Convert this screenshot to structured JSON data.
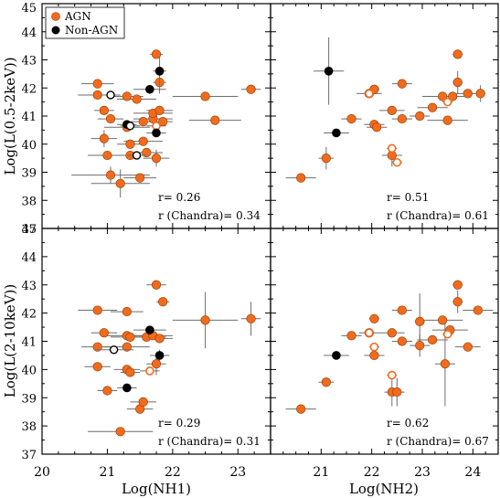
{
  "colors": {
    "agn": "#f26b1d",
    "agn_edge": "#8a3a00",
    "non_agn": "#000000",
    "axis": "#000000",
    "errbar": "#6e6e6e"
  },
  "legend": {
    "agn": "AGN",
    "non_agn": "Non-AGN",
    "placement": "top-left of top-left panel"
  },
  "chart_data": [
    {
      "type": "scatter",
      "panel": "top-left",
      "xlabel": "",
      "ylabel": "Log(L(0.5-2keV))",
      "xlim": [
        20,
        23.5
      ],
      "ylim": [
        37,
        45
      ],
      "xticks": [],
      "yticks": [
        "37",
        "38",
        "39",
        "40",
        "41",
        "42",
        "43",
        "44",
        "45"
      ],
      "stats": {
        "r": "r= 0.26",
        "r_chandra": "r (Chandra)= 0.34"
      },
      "agn": [
        {
          "x": 20.85,
          "y": 42.15,
          "xerr": 0.25,
          "yerr": 0.1,
          "open": false
        },
        {
          "x": 20.85,
          "y": 41.75,
          "xerr": 0.3,
          "yerr": 0.1,
          "open": false
        },
        {
          "x": 20.95,
          "y": 41.2,
          "xerr": 0.15,
          "yerr": 0.1,
          "open": false
        },
        {
          "x": 21.05,
          "y": 40.9,
          "xerr": 0.2,
          "yerr": 0.1,
          "open": false
        },
        {
          "x": 20.95,
          "y": 40.2,
          "xerr": 0.2,
          "yerr": 0.3,
          "open": false
        },
        {
          "x": 21.0,
          "y": 39.6,
          "xerr": 0.3,
          "yerr": 0.1,
          "open": false
        },
        {
          "x": 21.05,
          "y": 38.9,
          "xerr": 0.6,
          "yerr": 0.3,
          "open": false
        },
        {
          "x": 21.2,
          "y": 38.6,
          "xerr": 0.45,
          "yerr": 0.5,
          "open": false
        },
        {
          "x": 21.3,
          "y": 41.7,
          "xerr": 0.25,
          "yerr": 0.1,
          "open": false
        },
        {
          "x": 21.3,
          "y": 40.6,
          "xerr": 0.35,
          "yerr": 0.1,
          "open": false
        },
        {
          "x": 21.35,
          "y": 40.0,
          "xerr": 0.2,
          "yerr": 0.1,
          "open": false
        },
        {
          "x": 21.35,
          "y": 39.6,
          "xerr": 0.15,
          "yerr": 0.1,
          "open": false
        },
        {
          "x": 21.5,
          "y": 38.8,
          "xerr": 0.25,
          "yerr": 0.1,
          "open": false
        },
        {
          "x": 21.45,
          "y": 41.6,
          "xerr": 0.3,
          "yerr": 0.1,
          "open": false
        },
        {
          "x": 21.55,
          "y": 40.8,
          "xerr": 0.2,
          "yerr": 0.1,
          "open": false
        },
        {
          "x": 21.55,
          "y": 40.1,
          "xerr": 0.3,
          "yerr": 0.1,
          "open": false
        },
        {
          "x": 21.6,
          "y": 39.7,
          "xerr": 0.25,
          "yerr": 0.1,
          "open": false
        },
        {
          "x": 21.7,
          "y": 40.9,
          "xerr": 0.3,
          "yerr": 0.1,
          "open": false
        },
        {
          "x": 21.7,
          "y": 41.1,
          "xerr": 0.3,
          "yerr": 0.1,
          "open": false
        },
        {
          "x": 21.75,
          "y": 43.2,
          "xerr": 0.1,
          "yerr": 0.1,
          "open": false
        },
        {
          "x": 21.8,
          "y": 42.2,
          "xerr": 0.1,
          "yerr": 0.4,
          "open": false
        },
        {
          "x": 21.8,
          "y": 41.2,
          "xerr": 0.2,
          "yerr": 0.1,
          "open": false
        },
        {
          "x": 21.85,
          "y": 40.8,
          "xerr": 0.15,
          "yerr": 0.1,
          "open": false
        },
        {
          "x": 21.75,
          "y": 39.5,
          "xerr": 0.2,
          "yerr": 0.3,
          "open": false
        },
        {
          "x": 22.5,
          "y": 41.7,
          "xerr": 0.5,
          "yerr": 0.1,
          "open": false
        },
        {
          "x": 22.65,
          "y": 40.85,
          "xerr": 0.4,
          "yerr": 0.1,
          "open": false
        },
        {
          "x": 23.2,
          "y": 41.95,
          "xerr": 0.15,
          "yerr": 0.1,
          "open": false
        },
        {
          "x": 21.75,
          "y": 40.65,
          "xerr": 0.15,
          "yerr": 0.1,
          "open": true
        }
      ],
      "non_agn": [
        {
          "x": 21.65,
          "y": 41.95,
          "xerr": 0.25,
          "yerr": 0.1,
          "open": false
        },
        {
          "x": 21.8,
          "y": 42.6,
          "xerr": 0.1,
          "yerr": 0.5,
          "open": false
        },
        {
          "x": 21.3,
          "y": 40.7,
          "xerr": 0.15,
          "yerr": 0.1,
          "open": false
        },
        {
          "x": 21.75,
          "y": 40.4,
          "xerr": 0.15,
          "yerr": 0.1,
          "open": false
        },
        {
          "x": 21.05,
          "y": 41.75,
          "xerr": 0.15,
          "yerr": 0.1,
          "open": true
        },
        {
          "x": 21.35,
          "y": 40.65,
          "xerr": 0.15,
          "yerr": 0.1,
          "open": true
        },
        {
          "x": 21.45,
          "y": 39.6,
          "xerr": 0.15,
          "yerr": 0.1,
          "open": true
        }
      ]
    },
    {
      "type": "scatter",
      "panel": "top-right",
      "xlabel": "",
      "ylabel": "",
      "xlim": [
        20,
        24.5
      ],
      "ylim": [
        37,
        45
      ],
      "stats": {
        "r": "r= 0.51",
        "r_chandra": "r (Chandra)= 0.61"
      },
      "agn": [
        {
          "x": 20.6,
          "y": 38.8,
          "xerr": 0.3,
          "yerr": 0.1,
          "open": false
        },
        {
          "x": 21.1,
          "y": 39.5,
          "xerr": 0.15,
          "yerr": 0.4,
          "open": false
        },
        {
          "x": 21.6,
          "y": 40.9,
          "xerr": 0.2,
          "yerr": 0.1,
          "open": false
        },
        {
          "x": 21.95,
          "y": 41.8,
          "xerr": 0.25,
          "yerr": 0.1,
          "open": false
        },
        {
          "x": 22.05,
          "y": 41.95,
          "xerr": 0.1,
          "yerr": 0.1,
          "open": false
        },
        {
          "x": 22.05,
          "y": 40.7,
          "xerr": 0.2,
          "yerr": 0.1,
          "open": false
        },
        {
          "x": 22.1,
          "y": 40.6,
          "xerr": 0.2,
          "yerr": 0.1,
          "open": false
        },
        {
          "x": 22.4,
          "y": 41.2,
          "xerr": 0.25,
          "yerr": 0.1,
          "open": false
        },
        {
          "x": 22.4,
          "y": 39.6,
          "xerr": 0.2,
          "yerr": 0.4,
          "open": false
        },
        {
          "x": 22.6,
          "y": 42.15,
          "xerr": 0.2,
          "yerr": 0.1,
          "open": false
        },
        {
          "x": 22.6,
          "y": 40.9,
          "xerr": 0.2,
          "yerr": 0.1,
          "open": false
        },
        {
          "x": 22.95,
          "y": 41.0,
          "xerr": 0.2,
          "yerr": 0.1,
          "open": false
        },
        {
          "x": 23.2,
          "y": 41.3,
          "xerr": 0.3,
          "yerr": 0.1,
          "open": false
        },
        {
          "x": 23.4,
          "y": 41.7,
          "xerr": 0.4,
          "yerr": 0.1,
          "open": false
        },
        {
          "x": 23.5,
          "y": 40.85,
          "xerr": 0.4,
          "yerr": 0.1,
          "open": false
        },
        {
          "x": 23.6,
          "y": 41.7,
          "xerr": 0.35,
          "yerr": 0.1,
          "open": false
        },
        {
          "x": 23.7,
          "y": 43.2,
          "xerr": 0.1,
          "yerr": 0.1,
          "open": false
        },
        {
          "x": 23.7,
          "y": 42.2,
          "xerr": 0.1,
          "yerr": 0.4,
          "open": false
        },
        {
          "x": 23.9,
          "y": 41.8,
          "xerr": 0.3,
          "yerr": 0.1,
          "open": false
        },
        {
          "x": 24.15,
          "y": 41.8,
          "xerr": 0.1,
          "yerr": 0.3,
          "open": false
        },
        {
          "x": 21.95,
          "y": 41.8,
          "xerr": 0.1,
          "yerr": 0.1,
          "open": true
        },
        {
          "x": 22.4,
          "y": 39.85,
          "xerr": 0.1,
          "yerr": 0.1,
          "open": true
        },
        {
          "x": 22.5,
          "y": 39.35,
          "xerr": 0.1,
          "yerr": 0.1,
          "open": true
        },
        {
          "x": 23.5,
          "y": 41.5,
          "xerr": 0.1,
          "yerr": 0.1,
          "open": true
        }
      ],
      "non_agn": [
        {
          "x": 21.15,
          "y": 42.6,
          "xerr": 0.3,
          "yerr": 1.2,
          "open": false
        },
        {
          "x": 21.3,
          "y": 40.4,
          "xerr": 0.25,
          "yerr": 0.1,
          "open": false
        }
      ]
    },
    {
      "type": "scatter",
      "panel": "bottom-left",
      "xlabel": "Log(NH1)",
      "ylabel": "Log(L(2-10keV))",
      "xlim": [
        20,
        23.5
      ],
      "ylim": [
        37,
        45
      ],
      "xticks": [
        "20",
        "21",
        "22",
        "23"
      ],
      "yticks": [
        "37",
        "38",
        "39",
        "40",
        "41",
        "42",
        "43",
        "44",
        "45"
      ],
      "stats": {
        "r": "r= 0.29",
        "r_chandra": "r (Chandra)= 0.31"
      },
      "agn": [
        {
          "x": 20.85,
          "y": 42.1,
          "xerr": 0.3,
          "yerr": 0.1,
          "open": false
        },
        {
          "x": 20.95,
          "y": 41.3,
          "xerr": 0.2,
          "yerr": 0.1,
          "open": false
        },
        {
          "x": 20.85,
          "y": 40.8,
          "xerr": 0.25,
          "yerr": 0.1,
          "open": false
        },
        {
          "x": 20.85,
          "y": 40.1,
          "xerr": 0.2,
          "yerr": 0.1,
          "open": false
        },
        {
          "x": 21.0,
          "y": 39.25,
          "xerr": 0.15,
          "yerr": 0.1,
          "open": false
        },
        {
          "x": 21.3,
          "y": 42.05,
          "xerr": 0.25,
          "yerr": 0.1,
          "open": false
        },
        {
          "x": 21.3,
          "y": 40.8,
          "xerr": 0.35,
          "yerr": 0.1,
          "open": false
        },
        {
          "x": 21.3,
          "y": 40.0,
          "xerr": 0.2,
          "yerr": 0.1,
          "open": false
        },
        {
          "x": 21.35,
          "y": 39.9,
          "xerr": 0.15,
          "yerr": 0.1,
          "open": false
        },
        {
          "x": 21.3,
          "y": 41.2,
          "xerr": 0.35,
          "yerr": 0.1,
          "open": false
        },
        {
          "x": 21.5,
          "y": 38.6,
          "xerr": 0.2,
          "yerr": 0.1,
          "open": false
        },
        {
          "x": 21.55,
          "y": 38.85,
          "xerr": 0.2,
          "yerr": 0.1,
          "open": false
        },
        {
          "x": 21.2,
          "y": 37.8,
          "xerr": 0.5,
          "yerr": 0.1,
          "open": false
        },
        {
          "x": 21.6,
          "y": 41.15,
          "xerr": 0.3,
          "yerr": 0.1,
          "open": false
        },
        {
          "x": 21.7,
          "y": 41.2,
          "xerr": 0.3,
          "yerr": 0.1,
          "open": false
        },
        {
          "x": 21.75,
          "y": 43.0,
          "xerr": 0.15,
          "yerr": 0.1,
          "open": false
        },
        {
          "x": 21.85,
          "y": 42.4,
          "xerr": 0.1,
          "yerr": 0.1,
          "open": false
        },
        {
          "x": 21.8,
          "y": 41.1,
          "xerr": 0.2,
          "yerr": 0.1,
          "open": false
        },
        {
          "x": 21.75,
          "y": 40.2,
          "xerr": 0.15,
          "yerr": 0.4,
          "open": false
        },
        {
          "x": 22.5,
          "y": 41.75,
          "xerr": 0.5,
          "yerr": 1.0,
          "open": false
        },
        {
          "x": 23.2,
          "y": 41.8,
          "xerr": 0.15,
          "yerr": 0.6,
          "open": false
        },
        {
          "x": 21.35,
          "y": 41.15,
          "xerr": 0.3,
          "yerr": 0.1,
          "open": false
        },
        {
          "x": 21.65,
          "y": 39.95,
          "xerr": 0.15,
          "yerr": 0.1,
          "open": true
        }
      ],
      "non_agn": [
        {
          "x": 21.65,
          "y": 41.4,
          "xerr": 0.25,
          "yerr": 0.1,
          "open": false
        },
        {
          "x": 21.8,
          "y": 40.5,
          "xerr": 0.15,
          "yerr": 0.2,
          "open": false
        },
        {
          "x": 21.3,
          "y": 39.35,
          "xerr": 0.15,
          "yerr": 0.1,
          "open": false
        },
        {
          "x": 21.1,
          "y": 40.7,
          "xerr": 0.3,
          "yerr": 0.1,
          "open": true
        }
      ]
    },
    {
      "type": "scatter",
      "panel": "bottom-right",
      "xlabel": "Log(NH2)",
      "ylabel": "",
      "xlim": [
        20,
        24.5
      ],
      "ylim": [
        37,
        45
      ],
      "xticks": [
        "20",
        "21",
        "22",
        "23",
        "24"
      ],
      "stats": {
        "r": "r= 0.62",
        "r_chandra": "r (Chandra)= 0.67"
      },
      "agn": [
        {
          "x": 20.6,
          "y": 38.6,
          "xerr": 0.3,
          "yerr": 0.1,
          "open": false
        },
        {
          "x": 21.1,
          "y": 39.55,
          "xerr": 0.15,
          "yerr": 0.1,
          "open": false
        },
        {
          "x": 21.6,
          "y": 41.2,
          "xerr": 0.2,
          "yerr": 0.1,
          "open": false
        },
        {
          "x": 21.95,
          "y": 41.3,
          "xerr": 0.2,
          "yerr": 0.1,
          "open": false
        },
        {
          "x": 22.05,
          "y": 41.8,
          "xerr": 0.1,
          "yerr": 0.1,
          "open": false
        },
        {
          "x": 22.05,
          "y": 40.5,
          "xerr": 0.2,
          "yerr": 0.1,
          "open": false
        },
        {
          "x": 22.4,
          "y": 41.3,
          "xerr": 0.25,
          "yerr": 0.1,
          "open": false
        },
        {
          "x": 22.4,
          "y": 39.2,
          "xerr": 0.15,
          "yerr": 0.5,
          "open": false
        },
        {
          "x": 22.5,
          "y": 39.2,
          "xerr": 0.15,
          "yerr": 0.5,
          "open": false
        },
        {
          "x": 22.6,
          "y": 42.1,
          "xerr": 0.2,
          "yerr": 0.1,
          "open": false
        },
        {
          "x": 22.6,
          "y": 41.0,
          "xerr": 0.2,
          "yerr": 0.1,
          "open": false
        },
        {
          "x": 22.95,
          "y": 41.7,
          "xerr": 0.1,
          "yerr": 1.0,
          "open": false
        },
        {
          "x": 22.95,
          "y": 40.85,
          "xerr": 0.2,
          "yerr": 0.4,
          "open": false
        },
        {
          "x": 23.2,
          "y": 41.05,
          "xerr": 0.3,
          "yerr": 0.1,
          "open": false
        },
        {
          "x": 23.4,
          "y": 41.75,
          "xerr": 0.4,
          "yerr": 0.1,
          "open": false
        },
        {
          "x": 23.55,
          "y": 41.4,
          "xerr": 0.35,
          "yerr": 0.1,
          "open": false
        },
        {
          "x": 23.45,
          "y": 40.2,
          "xerr": 0.2,
          "yerr": 1.5,
          "open": false
        },
        {
          "x": 23.7,
          "y": 43.0,
          "xerr": 0.1,
          "yerr": 0.1,
          "open": false
        },
        {
          "x": 23.7,
          "y": 42.4,
          "xerr": 0.1,
          "yerr": 0.4,
          "open": false
        },
        {
          "x": 23.9,
          "y": 40.8,
          "xerr": 0.25,
          "yerr": 0.1,
          "open": false
        },
        {
          "x": 24.1,
          "y": 42.1,
          "xerr": 0.3,
          "yerr": 0.1,
          "open": false
        },
        {
          "x": 22.05,
          "y": 40.8,
          "xerr": 0.1,
          "yerr": 0.1,
          "open": true
        },
        {
          "x": 21.95,
          "y": 41.3,
          "xerr": 0.1,
          "yerr": 0.1,
          "open": true
        },
        {
          "x": 22.4,
          "y": 39.8,
          "xerr": 0.1,
          "yerr": 0.1,
          "open": true
        },
        {
          "x": 23.5,
          "y": 41.25,
          "xerr": 0.1,
          "yerr": 0.1,
          "open": true
        }
      ],
      "non_agn": [
        {
          "x": 21.3,
          "y": 40.5,
          "xerr": 0.25,
          "yerr": 0.1,
          "open": false
        }
      ]
    }
  ]
}
